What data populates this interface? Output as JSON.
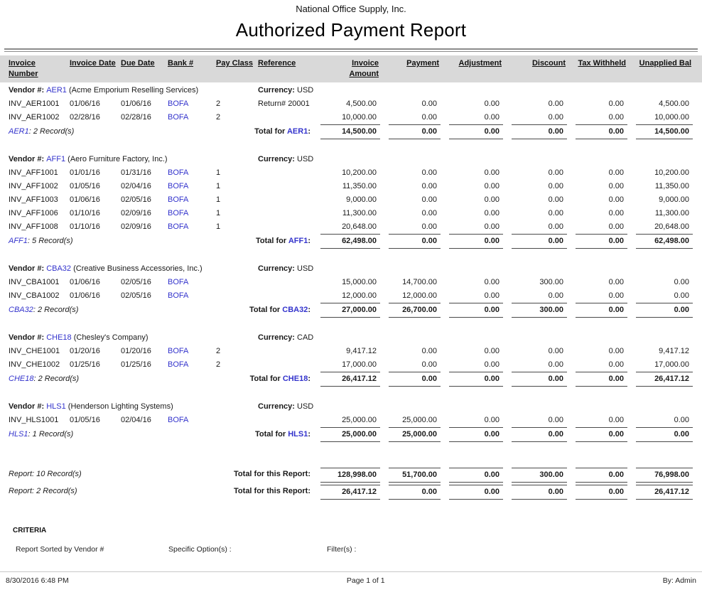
{
  "header": {
    "company": "National Office Supply, Inc.",
    "title": "Authorized Payment Report"
  },
  "columns": [
    "Invoice Number",
    "Invoice Date",
    "Due Date",
    "Bank #",
    "Pay Class",
    "Reference",
    "Invoice Amount",
    "Payment",
    "Adjustment",
    "Discount",
    "Tax Withheld",
    "Unapplied Bal"
  ],
  "labels": {
    "vendor_prefix": "Vendor #:",
    "currency_label": "Currency:",
    "total_for_prefix": "Total for",
    "records_suffix": "Record(s)",
    "report_prefix": "Report:",
    "report_total_label": "Total for this Report:"
  },
  "vendors": [
    {
      "code": "AER1",
      "name": "(Acme Emporium Reselling Services)",
      "currency": "USD",
      "records": "2",
      "rows": [
        {
          "invoice": "INV_AER1001",
          "invoice_date": "01/06/16",
          "due_date": "01/06/16",
          "bank": "BOFA",
          "pay_class": "2",
          "reference": "Return# 20001",
          "amounts": [
            "4,500.00",
            "0.00",
            "0.00",
            "0.00",
            "0.00",
            "4,500.00"
          ]
        },
        {
          "invoice": "INV_AER1002",
          "invoice_date": "02/28/16",
          "due_date": "02/28/16",
          "bank": "BOFA",
          "pay_class": "2",
          "reference": "",
          "amounts": [
            "10,000.00",
            "0.00",
            "0.00",
            "0.00",
            "0.00",
            "10,000.00"
          ]
        }
      ],
      "total": [
        "14,500.00",
        "0.00",
        "0.00",
        "0.00",
        "0.00",
        "14,500.00"
      ]
    },
    {
      "code": "AFF1",
      "name": "(Aero Furniture Factory, Inc.)",
      "currency": "USD",
      "records": "5",
      "rows": [
        {
          "invoice": "INV_AFF1001",
          "invoice_date": "01/01/16",
          "due_date": "01/31/16",
          "bank": "BOFA",
          "pay_class": "1",
          "reference": "",
          "amounts": [
            "10,200.00",
            "0.00",
            "0.00",
            "0.00",
            "0.00",
            "10,200.00"
          ]
        },
        {
          "invoice": "INV_AFF1002",
          "invoice_date": "01/05/16",
          "due_date": "02/04/16",
          "bank": "BOFA",
          "pay_class": "1",
          "reference": "",
          "amounts": [
            "11,350.00",
            "0.00",
            "0.00",
            "0.00",
            "0.00",
            "11,350.00"
          ]
        },
        {
          "invoice": "INV_AFF1003",
          "invoice_date": "01/06/16",
          "due_date": "02/05/16",
          "bank": "BOFA",
          "pay_class": "1",
          "reference": "",
          "amounts": [
            "9,000.00",
            "0.00",
            "0.00",
            "0.00",
            "0.00",
            "9,000.00"
          ]
        },
        {
          "invoice": "INV_AFF1006",
          "invoice_date": "01/10/16",
          "due_date": "02/09/16",
          "bank": "BOFA",
          "pay_class": "1",
          "reference": "",
          "amounts": [
            "11,300.00",
            "0.00",
            "0.00",
            "0.00",
            "0.00",
            "11,300.00"
          ]
        },
        {
          "invoice": "INV_AFF1008",
          "invoice_date": "01/10/16",
          "due_date": "02/09/16",
          "bank": "BOFA",
          "pay_class": "1",
          "reference": "",
          "amounts": [
            "20,648.00",
            "0.00",
            "0.00",
            "0.00",
            "0.00",
            "20,648.00"
          ]
        }
      ],
      "total": [
        "62,498.00",
        "0.00",
        "0.00",
        "0.00",
        "0.00",
        "62,498.00"
      ]
    },
    {
      "code": "CBA32",
      "name": "(Creative Business Accessories, Inc.)",
      "currency": "USD",
      "records": "2",
      "rows": [
        {
          "invoice": "INV_CBA1001",
          "invoice_date": "01/06/16",
          "due_date": "02/05/16",
          "bank": "BOFA",
          "pay_class": "",
          "reference": "",
          "amounts": [
            "15,000.00",
            "14,700.00",
            "0.00",
            "300.00",
            "0.00",
            "0.00"
          ]
        },
        {
          "invoice": "INV_CBA1002",
          "invoice_date": "01/06/16",
          "due_date": "02/05/16",
          "bank": "BOFA",
          "pay_class": "",
          "reference": "",
          "amounts": [
            "12,000.00",
            "12,000.00",
            "0.00",
            "0.00",
            "0.00",
            "0.00"
          ]
        }
      ],
      "total": [
        "27,000.00",
        "26,700.00",
        "0.00",
        "300.00",
        "0.00",
        "0.00"
      ]
    },
    {
      "code": "CHE18",
      "name": "(Chesley's Company)",
      "currency": "CAD",
      "records": "2",
      "rows": [
        {
          "invoice": "INV_CHE1001",
          "invoice_date": "01/20/16",
          "due_date": "01/20/16",
          "bank": "BOFA",
          "pay_class": "2",
          "reference": "",
          "amounts": [
            "9,417.12",
            "0.00",
            "0.00",
            "0.00",
            "0.00",
            "9,417.12"
          ]
        },
        {
          "invoice": "INV_CHE1002",
          "invoice_date": "01/25/16",
          "due_date": "01/25/16",
          "bank": "BOFA",
          "pay_class": "2",
          "reference": "",
          "amounts": [
            "17,000.00",
            "0.00",
            "0.00",
            "0.00",
            "0.00",
            "17,000.00"
          ]
        }
      ],
      "total": [
        "26,417.12",
        "0.00",
        "0.00",
        "0.00",
        "0.00",
        "26,417.12"
      ]
    },
    {
      "code": "HLS1",
      "name": "(Henderson Lighting Systems)",
      "currency": "USD",
      "records": "1",
      "rows": [
        {
          "invoice": "INV_HLS1001",
          "invoice_date": "01/05/16",
          "due_date": "02/04/16",
          "bank": "BOFA",
          "pay_class": "",
          "reference": "",
          "amounts": [
            "25,000.00",
            "25,000.00",
            "0.00",
            "0.00",
            "0.00",
            "0.00"
          ]
        }
      ],
      "total": [
        "25,000.00",
        "25,000.00",
        "0.00",
        "0.00",
        "0.00",
        "0.00"
      ]
    }
  ],
  "report_totals": [
    {
      "records": "10",
      "amounts": [
        "128,998.00",
        "51,700.00",
        "0.00",
        "300.00",
        "0.00",
        "76,998.00"
      ]
    },
    {
      "records": "2",
      "amounts": [
        "26,417.12",
        "0.00",
        "0.00",
        "0.00",
        "0.00",
        "26,417.12"
      ]
    }
  ],
  "criteria": {
    "heading": "CRITERIA",
    "sorted_by": "Report Sorted by Vendor #",
    "specific_options": "Specific Option(s) :",
    "filters": "Filter(s) :"
  },
  "footer": {
    "datetime": "8/30/2016 6:48 PM",
    "page": "Page 1 of 1",
    "by": "By: Admin"
  },
  "colors": {
    "link_blue": "#3333cc",
    "header_band": "#d9d9d9"
  }
}
